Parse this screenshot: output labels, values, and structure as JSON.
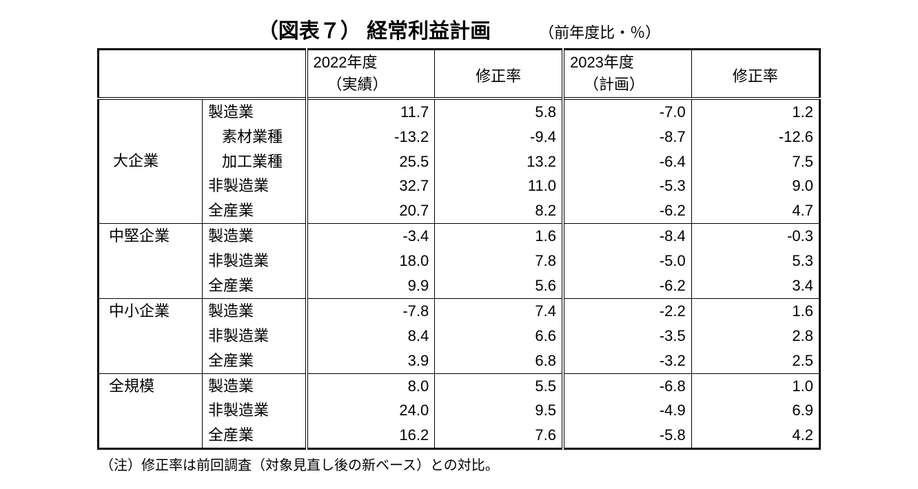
{
  "title": "（図表７） 経常利益計画",
  "title_note": "（前年度比・％）",
  "header": {
    "fy2022": "2022年度",
    "fy2022_sub": "（実績）",
    "fy2023": "2023年度",
    "fy2023_sub": "（計画）",
    "revision": "修正率"
  },
  "groups": [
    {
      "name": "大企業",
      "rows": [
        {
          "label": "製造業",
          "indent": 0,
          "v22": "11.7",
          "r22": "5.8",
          "v23": "-7.0",
          "r23": "1.2"
        },
        {
          "label": "素材業種",
          "indent": 1,
          "v22": "-13.2",
          "r22": "-9.4",
          "v23": "-8.7",
          "r23": "-12.6"
        },
        {
          "label": "加工業種",
          "indent": 1,
          "v22": "25.5",
          "r22": "13.2",
          "v23": "-6.4",
          "r23": "7.5"
        },
        {
          "label": "非製造業",
          "indent": 0,
          "v22": "32.7",
          "r22": "11.0",
          "v23": "-5.3",
          "r23": "9.0"
        },
        {
          "label": "全産業",
          "indent": 0,
          "v22": "20.7",
          "r22": "8.2",
          "v23": "-6.2",
          "r23": "4.7"
        }
      ]
    },
    {
      "name": "中堅企業",
      "rows": [
        {
          "label": "製造業",
          "indent": 0,
          "v22": "-3.4",
          "r22": "1.6",
          "v23": "-8.4",
          "r23": "-0.3"
        },
        {
          "label": "非製造業",
          "indent": 0,
          "v22": "18.0",
          "r22": "7.8",
          "v23": "-5.0",
          "r23": "5.3"
        },
        {
          "label": "全産業",
          "indent": 0,
          "v22": "9.9",
          "r22": "5.6",
          "v23": "-6.2",
          "r23": "3.4"
        }
      ]
    },
    {
      "name": "中小企業",
      "rows": [
        {
          "label": "製造業",
          "indent": 0,
          "v22": "-7.8",
          "r22": "7.4",
          "v23": "-2.2",
          "r23": "1.6"
        },
        {
          "label": "非製造業",
          "indent": 0,
          "v22": "8.4",
          "r22": "6.6",
          "v23": "-3.5",
          "r23": "2.8"
        },
        {
          "label": "全産業",
          "indent": 0,
          "v22": "3.9",
          "r22": "6.8",
          "v23": "-3.2",
          "r23": "2.5"
        }
      ]
    },
    {
      "name": "全規模",
      "rows": [
        {
          "label": "製造業",
          "indent": 0,
          "v22": "8.0",
          "r22": "5.5",
          "v23": "-6.8",
          "r23": "1.0"
        },
        {
          "label": "非製造業",
          "indent": 0,
          "v22": "24.0",
          "r22": "9.5",
          "v23": "-4.9",
          "r23": "6.9"
        },
        {
          "label": "全産業",
          "indent": 0,
          "v22": "16.2",
          "r22": "7.6",
          "v23": "-5.8",
          "r23": "4.2"
        }
      ]
    }
  ],
  "footnote": "（注）修正率は前回調査（対象見直し後の新ベース）との対比。",
  "colors": {
    "text": "#000000",
    "bg": "#ffffff",
    "border": "#000000"
  },
  "font_sizes": {
    "title": 30,
    "title_note": 22,
    "body": 22,
    "footnote": 20
  }
}
